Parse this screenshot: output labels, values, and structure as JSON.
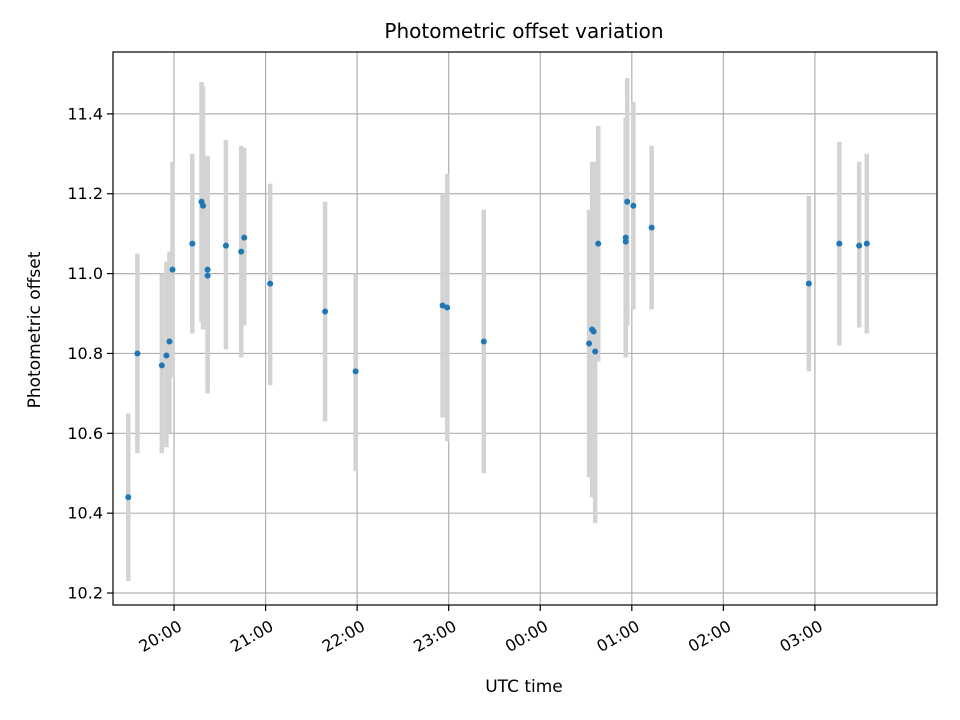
{
  "chart_data": {
    "type": "scatter",
    "title": "Photometric offset variation",
    "xlabel": "UTC time",
    "ylabel": "Photometric offset",
    "x_is_time": true,
    "x_range": [
      "19:20",
      "04:20"
    ],
    "ylim": [
      10.17,
      11.555
    ],
    "xticks": [
      {
        "time": "20:00",
        "label": "20:00"
      },
      {
        "time": "21:00",
        "label": "21:00"
      },
      {
        "time": "22:00",
        "label": "22:00"
      },
      {
        "time": "23:00",
        "label": "23:00"
      },
      {
        "time": "00:00",
        "label": "00:00"
      },
      {
        "time": "01:00",
        "label": "01:00"
      },
      {
        "time": "02:00",
        "label": "02:00"
      },
      {
        "time": "03:00",
        "label": "03:00"
      }
    ],
    "yticks": [
      10.2,
      10.4,
      10.6,
      10.8,
      11.0,
      11.2,
      11.4
    ],
    "grid": true,
    "colors": {
      "point": "#1f77b4",
      "errorbar": "#d3d3d3",
      "grid": "#b0b0b0"
    },
    "points": [
      {
        "t": "19:30",
        "y": 10.44,
        "lo": 10.23,
        "hi": 10.65
      },
      {
        "t": "19:36",
        "y": 10.8,
        "lo": 10.55,
        "hi": 11.05
      },
      {
        "t": "19:52",
        "y": 10.77,
        "lo": 10.55,
        "hi": 11.0
      },
      {
        "t": "19:55",
        "y": 10.795,
        "lo": 10.565,
        "hi": 11.03
      },
      {
        "t": "19:57",
        "y": 10.83,
        "lo": 10.6,
        "hi": 11.055
      },
      {
        "t": "19:59",
        "y": 11.01,
        "lo": 10.74,
        "hi": 11.28
      },
      {
        "t": "20:12",
        "y": 11.075,
        "lo": 10.85,
        "hi": 11.3
      },
      {
        "t": "20:18",
        "y": 11.18,
        "lo": 10.88,
        "hi": 11.48
      },
      {
        "t": "20:19",
        "y": 11.17,
        "lo": 10.86,
        "hi": 11.47
      },
      {
        "t": "20:22",
        "y": 11.01,
        "lo": 10.72,
        "hi": 11.295
      },
      {
        "t": "20:22",
        "y": 10.995,
        "lo": 10.7,
        "hi": 11.29
      },
      {
        "t": "20:34",
        "y": 11.07,
        "lo": 10.81,
        "hi": 11.335
      },
      {
        "t": "20:44",
        "y": 11.055,
        "lo": 10.79,
        "hi": 11.32
      },
      {
        "t": "20:46",
        "y": 11.09,
        "lo": 10.87,
        "hi": 11.315
      },
      {
        "t": "21:03",
        "y": 10.975,
        "lo": 10.72,
        "hi": 11.225
      },
      {
        "t": "21:39",
        "y": 10.905,
        "lo": 10.63,
        "hi": 11.18
      },
      {
        "t": "21:59",
        "y": 10.755,
        "lo": 10.505,
        "hi": 11.0
      },
      {
        "t": "22:56",
        "y": 10.92,
        "lo": 10.64,
        "hi": 11.2
      },
      {
        "t": "22:59",
        "y": 10.915,
        "lo": 10.58,
        "hi": 11.25
      },
      {
        "t": "23:23",
        "y": 10.83,
        "lo": 10.5,
        "hi": 11.16
      },
      {
        "t": "00:32",
        "y": 10.825,
        "lo": 10.49,
        "hi": 11.16
      },
      {
        "t": "00:34",
        "y": 10.86,
        "lo": 10.44,
        "hi": 11.28
      },
      {
        "t": "00:35",
        "y": 10.855,
        "lo": 10.44,
        "hi": 11.28
      },
      {
        "t": "00:36",
        "y": 10.805,
        "lo": 10.375,
        "hi": 11.235
      },
      {
        "t": "00:38",
        "y": 11.075,
        "lo": 10.78,
        "hi": 11.37
      },
      {
        "t": "00:56",
        "y": 11.08,
        "lo": 10.79,
        "hi": 11.39
      },
      {
        "t": "00:56",
        "y": 11.09,
        "lo": 10.795,
        "hi": 11.39
      },
      {
        "t": "00:57",
        "y": 11.18,
        "lo": 10.87,
        "hi": 11.49
      },
      {
        "t": "01:01",
        "y": 11.17,
        "lo": 10.91,
        "hi": 11.43
      },
      {
        "t": "01:13",
        "y": 11.115,
        "lo": 10.91,
        "hi": 11.32
      },
      {
        "t": "02:56",
        "y": 10.975,
        "lo": 10.755,
        "hi": 11.195
      },
      {
        "t": "03:16",
        "y": 11.075,
        "lo": 10.82,
        "hi": 11.33
      },
      {
        "t": "03:29",
        "y": 11.07,
        "lo": 10.865,
        "hi": 11.28
      },
      {
        "t": "03:34",
        "y": 11.075,
        "lo": 10.85,
        "hi": 11.3
      }
    ]
  }
}
